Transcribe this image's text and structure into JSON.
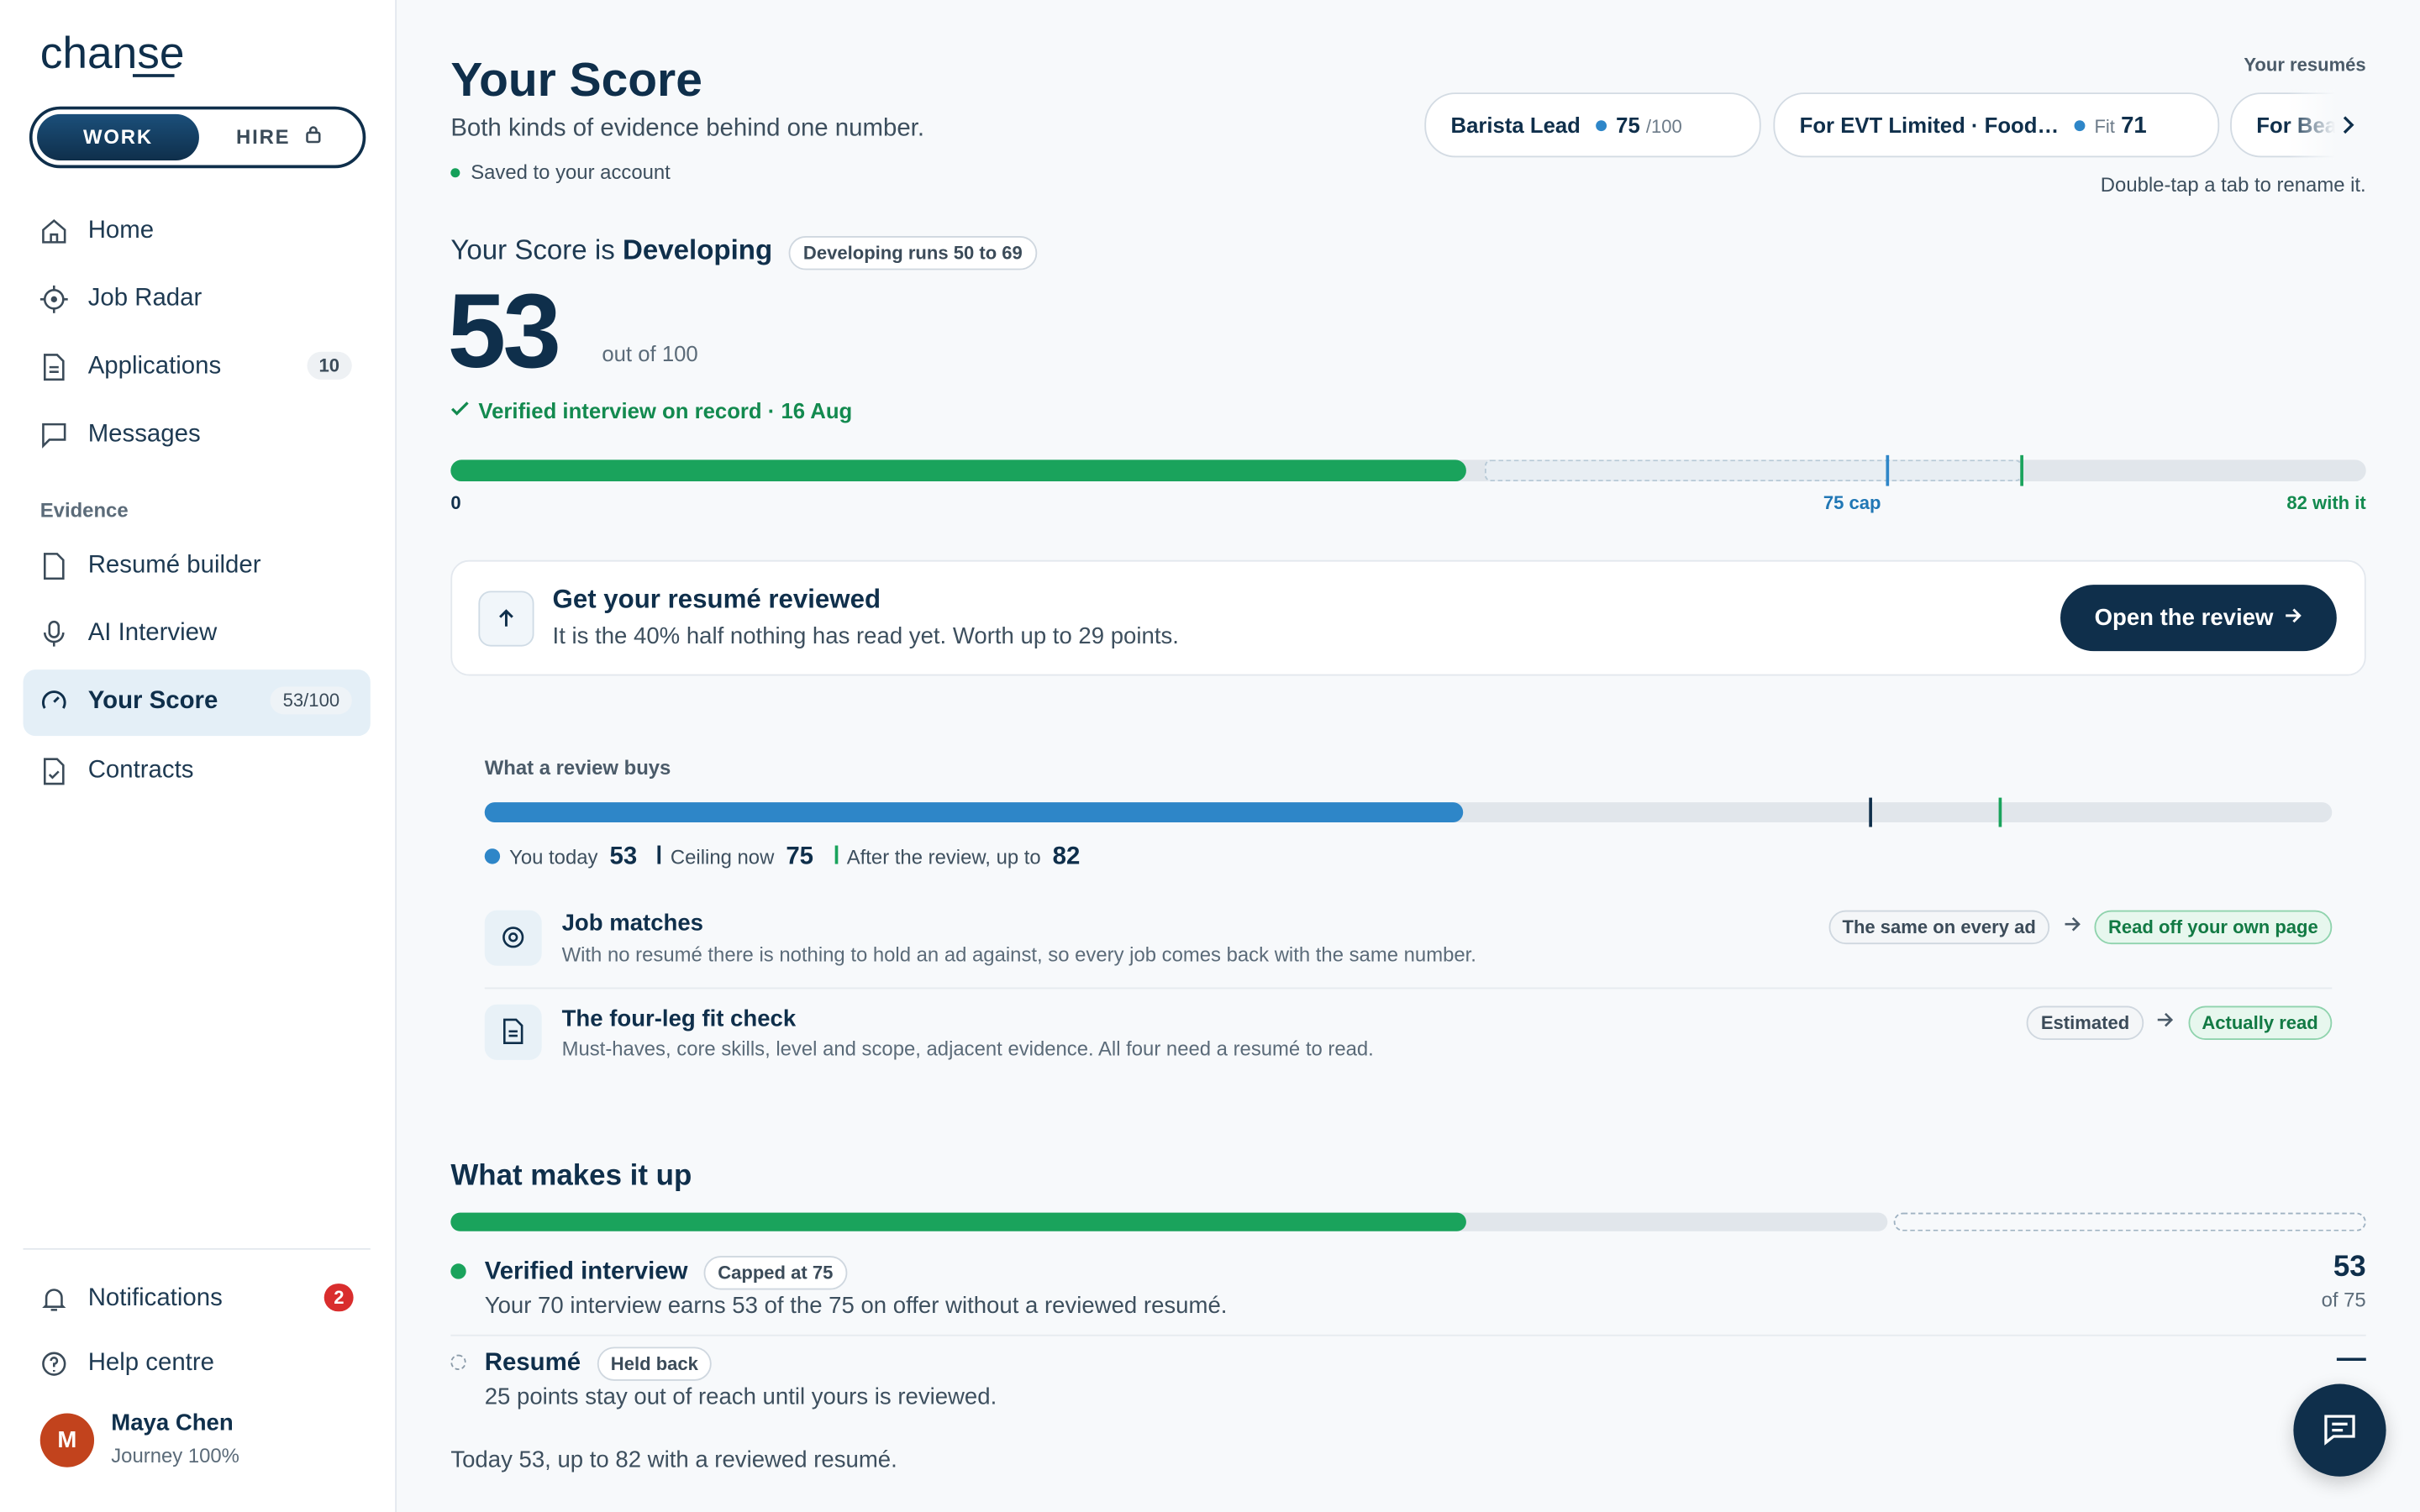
{
  "sidebar": {
    "logo": "chanse",
    "toggle": [
      "WORK",
      "HIRE"
    ],
    "nav": [
      {
        "label": "Home"
      },
      {
        "label": "Job Radar"
      },
      {
        "label": "Applications",
        "badge": 10
      },
      {
        "label": "Messages"
      }
    ],
    "evidence_heading": "Evidence",
    "evidence_nav": [
      {
        "label": "Resumé builder"
      },
      {
        "label": "AI Interview"
      },
      {
        "label": "Your Score",
        "badge": "53/100"
      },
      {
        "label": "Contracts"
      }
    ],
    "footer_nav": [
      {
        "label": "Notifications",
        "badge": 2
      },
      {
        "label": "Help centre"
      }
    ],
    "user": {
      "initial": "M",
      "name": "Maya Chen",
      "status": "Journey 100%"
    }
  },
  "header": {
    "title": "Your Score",
    "subtitle": "Both kinds of evidence behind one number.",
    "saved": "Saved to your account"
  },
  "resumes": {
    "label": "Your resumés",
    "tabs": [
      {
        "name": "Barista Lead",
        "score": 75,
        "suffix": "/100"
      },
      {
        "name": "For EVT Limited · Food…",
        "prefix": "Fit",
        "score": 71
      },
      {
        "name": "For Bea"
      }
    ],
    "hint": "Double-tap a tab to rename it."
  },
  "score": {
    "heading_prefix": "Your Score is",
    "level": "Developing",
    "range_badge": "Developing runs 50 to 69",
    "value": 53,
    "out_of_text": "out of",
    "max": 100,
    "verified": "Verified interview on record · 16 Aug",
    "min": 0,
    "cap": 75,
    "cap_label": "75 cap",
    "with_review": 82,
    "with_label": "82 with it"
  },
  "cta": {
    "title": "Get your resumé reviewed",
    "body": "It is the 40% half nothing has read yet. Worth up to 29 points.",
    "button": "Open the review"
  },
  "review_buys": {
    "heading": "What a review buys",
    "legend": [
      {
        "label": "You today",
        "value": 53
      },
      {
        "label": "Ceiling now",
        "value": 75
      },
      {
        "label": "After the review, up to",
        "value": 82
      }
    ],
    "items": [
      {
        "title": "Job matches",
        "desc": "With no resumé there is nothing to hold an ad against, so every job comes back with the same number.",
        "from": "The same on every ad",
        "to": "Read off your own page"
      },
      {
        "title": "The four-leg fit check",
        "desc": "Must-haves, core skills, level and scope, adjacent evidence. All four need a resumé to read.",
        "from": "Estimated",
        "to": "Actually read"
      }
    ]
  },
  "makeup": {
    "heading": "What makes it up",
    "components": [
      {
        "name": "Verified interview",
        "badge": "Capped at 75",
        "desc": "Your 70 interview earns 53 of the 75 on offer without a reviewed resumé.",
        "score": 53,
        "of_prefix": "of",
        "cap": 75
      },
      {
        "name": "Resumé",
        "badge": "Held back",
        "desc": "25 points stay out of reach until yours is reviewed.",
        "score": "—"
      }
    ],
    "summary": "Today 53, up to 82 with a reviewed resumé."
  }
}
